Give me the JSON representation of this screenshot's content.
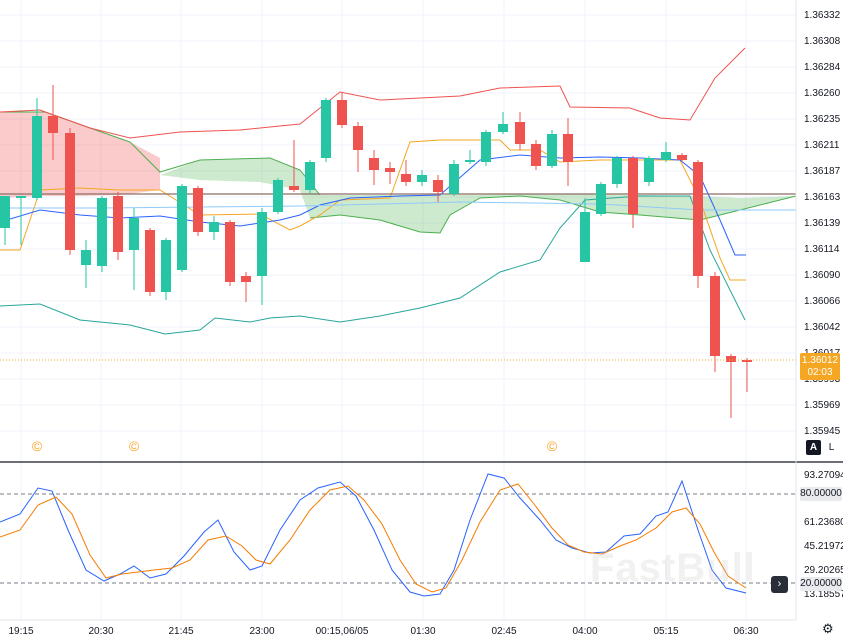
{
  "chart_data": {
    "type": "candlestick",
    "price_axis": [
      "1.36332",
      "1.36308",
      "1.36284",
      "1.36260",
      "1.36235",
      "1.36211",
      "1.36187",
      "1.36163",
      "1.36139",
      "1.36114",
      "1.36090",
      "1.36066",
      "1.36042",
      "1.36017",
      "1.35993",
      "1.35969",
      "1.35945"
    ],
    "osc_axis": [
      "93.27094",
      "80.00000",
      "61.23680",
      "45.21972",
      "29.20265",
      "20.00000",
      "13.18557"
    ],
    "time_axis": [
      "19:15",
      "20:30",
      "21:45",
      "23:00",
      "00:15,06/05",
      "01:30",
      "02:45",
      "04:00",
      "05:15",
      "06:30"
    ],
    "last_price": "1.36012",
    "countdown": "02:03",
    "osc_upper": "80.00000",
    "osc_lower": "20.00000",
    "toggle_auto": "A",
    "toggle_log": "L",
    "nav_arrow": "›",
    "settings_icon": "⚙",
    "event_icon": "©",
    "watermark": "FastBull",
    "colors": {
      "up": "#26c6a5",
      "down": "#ef5350",
      "last": "#f5a623"
    }
  }
}
